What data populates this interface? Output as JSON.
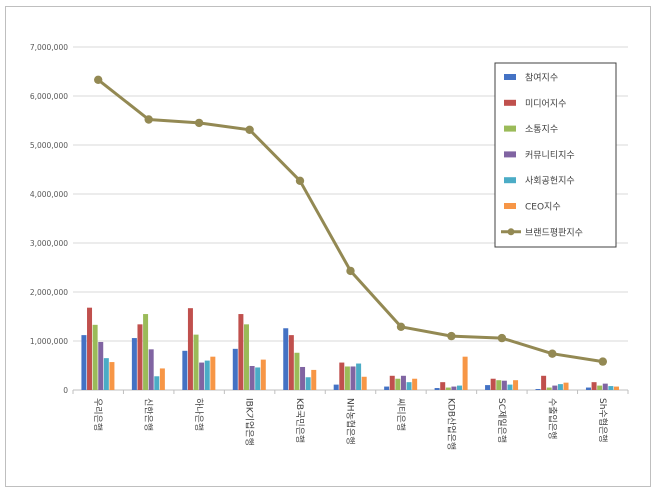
{
  "chart_data": {
    "type": "bar",
    "title": "",
    "xlabel": "",
    "ylabel": "",
    "ylim": [
      0,
      7000000
    ],
    "yticks": [
      0,
      1000000,
      2000000,
      3000000,
      4000000,
      5000000,
      6000000,
      7000000
    ],
    "ytick_labels": [
      "0",
      "1,000,000",
      "2,000,000",
      "3,000,000",
      "4,000,000",
      "5,000,000",
      "6,000,000",
      "7,000,000"
    ],
    "grid": true,
    "legend_position": "top-right",
    "categories": [
      "우리은행",
      "신한은행",
      "하나은행",
      "IBK기업은행",
      "KB국민은행",
      "NH농협은행",
      "씨티은행",
      "KDB산업은행",
      "SC제일은행",
      "수출입은행",
      "Sh수협은행"
    ],
    "series": [
      {
        "name": "참여지수",
        "kind": "bar",
        "color": "#4472c4",
        "values": [
          1120000,
          1060000,
          800000,
          840000,
          1260000,
          110000,
          70000,
          40000,
          100000,
          20000,
          50000
        ]
      },
      {
        "name": "미디어지수",
        "kind": "bar",
        "color": "#c0504d",
        "values": [
          1680000,
          1340000,
          1670000,
          1550000,
          1120000,
          560000,
          290000,
          160000,
          230000,
          290000,
          160000
        ]
      },
      {
        "name": "소통지수",
        "kind": "bar",
        "color": "#9bbb59",
        "values": [
          1330000,
          1550000,
          1130000,
          1340000,
          760000,
          480000,
          230000,
          50000,
          200000,
          50000,
          90000
        ]
      },
      {
        "name": "커뮤니티지수",
        "kind": "bar",
        "color": "#8064a2",
        "values": [
          980000,
          830000,
          560000,
          490000,
          470000,
          480000,
          290000,
          70000,
          190000,
          90000,
          130000
        ]
      },
      {
        "name": "사회공헌지수",
        "kind": "bar",
        "color": "#4bacc6",
        "values": [
          650000,
          280000,
          600000,
          460000,
          260000,
          540000,
          160000,
          90000,
          110000,
          120000,
          80000
        ]
      },
      {
        "name": "CEO지수",
        "kind": "bar",
        "color": "#f79646",
        "values": [
          570000,
          440000,
          680000,
          620000,
          410000,
          270000,
          230000,
          680000,
          200000,
          150000,
          70000
        ]
      },
      {
        "name": "브랜드평판지수",
        "kind": "line",
        "color": "#938953",
        "values": [
          6330000,
          5520000,
          5450000,
          5310000,
          4270000,
          2430000,
          1290000,
          1100000,
          1060000,
          740000,
          580000
        ]
      }
    ]
  }
}
